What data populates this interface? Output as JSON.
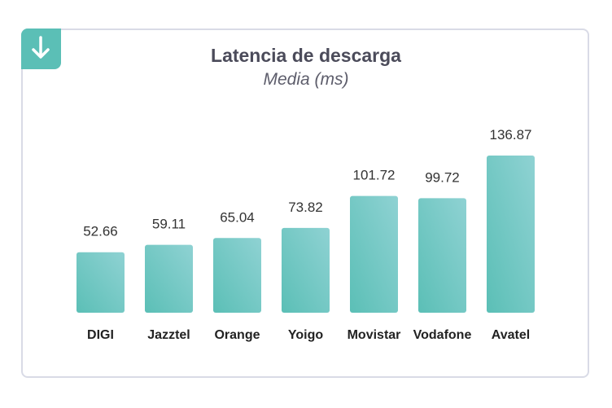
{
  "icons": {
    "badge": "arrow-down-icon"
  },
  "colors": {
    "bar_start": "#5bbfb6",
    "bar_end": "#8fd2d3",
    "badge": "#5bbfb6"
  },
  "chart_data": {
    "type": "bar",
    "title": "Latencia de descarga",
    "subtitle": "Media (ms)",
    "categories": [
      "DIGI",
      "Jazztel",
      "Orange",
      "Yoigo",
      "Movistar",
      "Vodafone",
      "Avatel"
    ],
    "values": [
      52.66,
      59.11,
      65.04,
      73.82,
      101.72,
      99.72,
      136.87
    ],
    "value_labels": [
      "52.66",
      "59.11",
      "65.04",
      "73.82",
      "101.72",
      "99.72",
      "136.87"
    ],
    "xlabel": "",
    "ylabel": "",
    "ylim": [
      0,
      140
    ],
    "grid": false,
    "legend": "none"
  }
}
